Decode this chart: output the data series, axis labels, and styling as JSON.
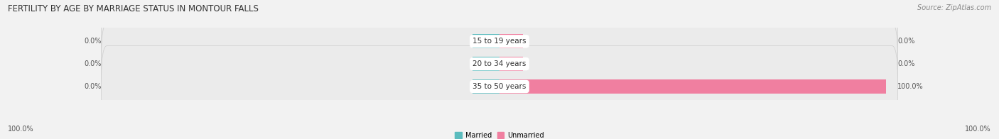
{
  "title": "FERTILITY BY AGE BY MARRIAGE STATUS IN MONTOUR FALLS",
  "source": "Source: ZipAtlas.com",
  "categories": [
    "15 to 19 years",
    "20 to 34 years",
    "35 to 50 years"
  ],
  "married_pct": [
    0.0,
    0.0,
    0.0
  ],
  "unmarried_pct": [
    0.0,
    0.0,
    100.0
  ],
  "married_color": "#5BBCBE",
  "unmarried_color": "#F07FA0",
  "bg_color": "#f2f2f2",
  "bar_bg_color": "#e0e0e0",
  "bar_bg_color2": "#ebebeb",
  "bottom_left_label": "100.0%",
  "bottom_right_label": "100.0%",
  "legend_married": "Married",
  "legend_unmarried": "Unmarried",
  "title_fontsize": 8.5,
  "source_fontsize": 7.0,
  "label_fontsize": 7.0,
  "cat_fontsize": 7.5,
  "bar_height": 0.62,
  "teal_bump": 7.0,
  "pink_bump": 6.0,
  "max_val": 100.0,
  "row_order": [
    2,
    1,
    0
  ]
}
